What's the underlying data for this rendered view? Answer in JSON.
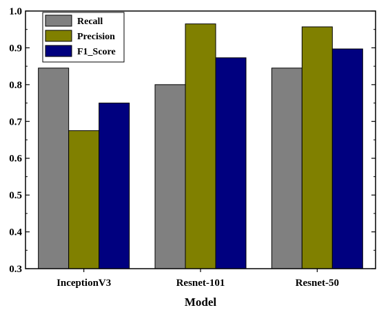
{
  "chart_data": {
    "type": "bar",
    "title": "",
    "xlabel": "Model",
    "ylabel": "",
    "categories": [
      "InceptionV3",
      "Resnet-101",
      "Resnet-50"
    ],
    "series": [
      {
        "name": "Recall",
        "color": "#808080",
        "values": [
          0.845,
          0.8,
          0.845
        ]
      },
      {
        "name": "Precision",
        "color": "#808000",
        "values": [
          0.675,
          0.965,
          0.957
        ]
      },
      {
        "name": "F1_Score",
        "color": "#00007F",
        "values": [
          0.75,
          0.873,
          0.897
        ]
      }
    ],
    "ylim": [
      0.3,
      1.0
    ],
    "yticks": [
      0.3,
      0.4,
      0.5,
      0.6,
      0.7,
      0.8,
      0.9,
      1.0
    ],
    "ytick_labels": [
      "0.3",
      "0.4",
      "0.5",
      "0.6",
      "0.7",
      "0.8",
      "0.9",
      "1.0"
    ],
    "grid": false,
    "legend_position": "top-left"
  }
}
